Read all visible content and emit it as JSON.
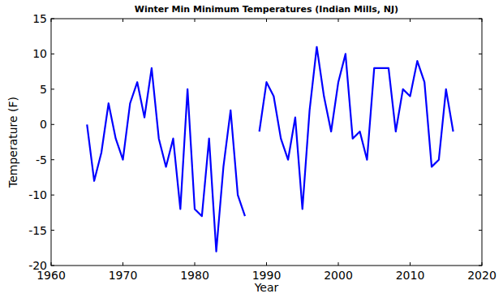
{
  "chart_data": {
    "type": "line",
    "title": "Winter Min Minimum Temperatures (Indian Mills, NJ)",
    "x_label": "Year",
    "y_label": "Temperature (F)",
    "x": [
      1965,
      1966,
      1967,
      1968,
      1969,
      1970,
      1971,
      1972,
      1973,
      1974,
      1975,
      1976,
      1977,
      1978,
      1979,
      1980,
      1981,
      1982,
      1983,
      1984,
      1985,
      1986,
      1987,
      1988,
      1989,
      1990,
      1991,
      1992,
      1993,
      1994,
      1995,
      1996,
      1997,
      1998,
      1999,
      2000,
      2001,
      2002,
      2003,
      2004,
      2005,
      2006,
      2007,
      2008,
      2009,
      2010,
      2011,
      2012,
      2013,
      2014,
      2015,
      2016
    ],
    "values": [
      0,
      -8,
      -4,
      3,
      -2,
      -5,
      3,
      6,
      1,
      8,
      -2,
      -6,
      -2,
      -12,
      5,
      -12,
      -13,
      -2,
      -18,
      -6,
      2,
      -10,
      -13,
      null,
      -1,
      6,
      4,
      -2,
      -5,
      1,
      -12,
      2,
      11,
      4,
      -1,
      6,
      10,
      -2,
      -1,
      -5,
      8,
      8,
      8,
      -1,
      5,
      4,
      9,
      6,
      -6,
      -5,
      5,
      -1
    ],
    "color": "#0000ff",
    "xlim": [
      1960,
      2020
    ],
    "xticks": [
      1960,
      1970,
      1980,
      1990,
      2000,
      2010,
      2020
    ],
    "ylim": [
      -20,
      15
    ],
    "yticks": [
      -20,
      -15,
      -10,
      -5,
      0,
      5,
      10,
      15
    ],
    "grid": false
  }
}
